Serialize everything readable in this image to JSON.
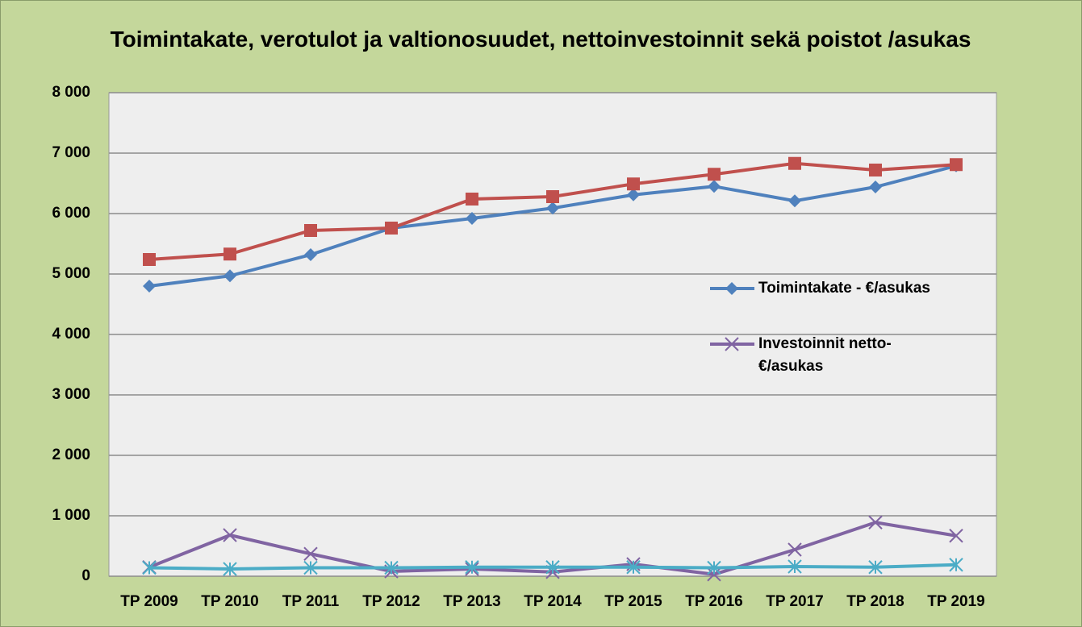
{
  "chart_data": {
    "type": "line",
    "title": "Toimintakate, verotulot ja valtionosuudet, nettoinvestoinnit sekä poistot /asukas",
    "categories": [
      "TP 2009",
      "TP 2010",
      "TP 2011",
      "TP 2012",
      "TP 2013",
      "TP 2014",
      "TP 2015",
      "TP 2016",
      "TP 2017",
      "TP 2018",
      "TP 2019"
    ],
    "series": [
      {
        "name": "Toimintakate - €/asukas",
        "color": "#4f81bd",
        "marker": "diamond",
        "values": [
          4800,
          4970,
          5320,
          5760,
          5920,
          6090,
          6310,
          6450,
          6210,
          6440,
          6790
        ]
      },
      {
        "color": "#c0504d",
        "marker": "square",
        "values": [
          5240,
          5330,
          5720,
          5760,
          6240,
          6280,
          6490,
          6650,
          6830,
          6720,
          6810
        ]
      },
      {
        "name": "Investoinnit netto-€/asukas",
        "color": "#8064a2",
        "marker": "x",
        "values": [
          150,
          680,
          370,
          80,
          120,
          70,
          200,
          30,
          440,
          890,
          670
        ]
      },
      {
        "color": "#4bacc6",
        "marker": "star",
        "values": [
          140,
          120,
          140,
          140,
          150,
          150,
          150,
          140,
          160,
          150,
          190
        ]
      }
    ],
    "ylim": [
      0,
      8000
    ],
    "yticks": [
      0,
      {
        "value": 1000,
        "label": "1 000"
      },
      {
        "value": 2000,
        "label": "2 000"
      },
      {
        "value": 3000,
        "label": "3 000"
      },
      {
        "value": 4000,
        "label": "4 000"
      },
      {
        "value": 5000,
        "label": "5 000"
      },
      {
        "value": 6000,
        "label": "6 000"
      },
      {
        "value": 7000,
        "label": "7 000"
      },
      {
        "value": 8000,
        "label": "8 000"
      }
    ],
    "grid": true
  }
}
